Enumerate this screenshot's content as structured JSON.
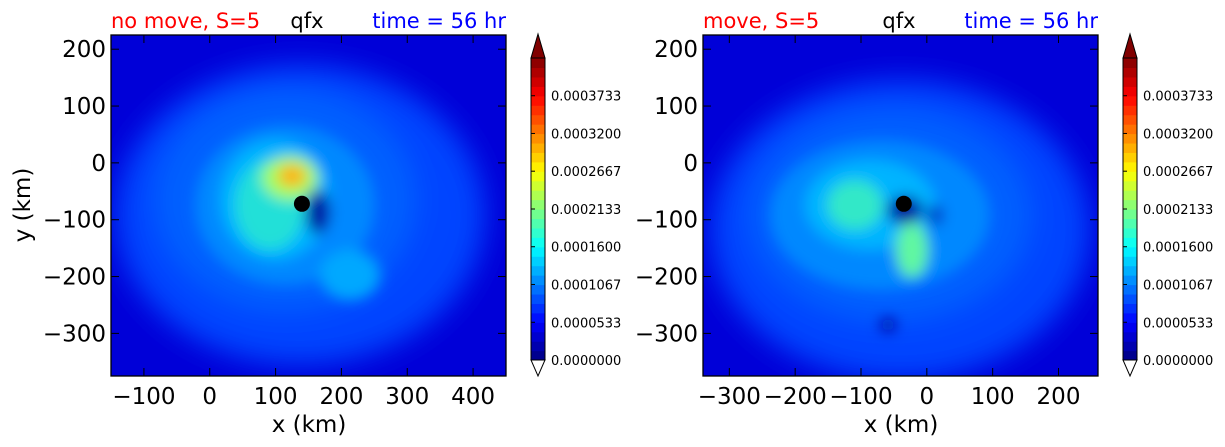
{
  "chart_data": [
    {
      "type": "contour",
      "title_left": "no move, S=5",
      "title_left_color": "#ff0000",
      "title_center": "qfx",
      "title_right": "time = 56 hr",
      "title_right_color": "#0000ff",
      "xlabel": "x (km)",
      "ylabel": "y (km)",
      "xlim": [
        -150,
        450
      ],
      "ylim": [
        -375,
        225
      ],
      "xticks": [
        -100,
        0,
        100,
        200,
        300,
        400
      ],
      "xtick_labels": [
        "−100",
        "0",
        "100",
        "200",
        "300",
        "400"
      ],
      "yticks": [
        200,
        100,
        0,
        -100,
        -200,
        -300
      ],
      "ytick_labels": [
        "200",
        "100",
        "0",
        "−100",
        "−200",
        "−300"
      ],
      "center_marker": {
        "x": 140,
        "y": -72
      },
      "field_max": [
        {
          "x": 120,
          "y": -30,
          "value": 0.00028
        },
        {
          "x": 230,
          "y": -200,
          "value": 0.00013
        }
      ],
      "colorbar": {
        "levels": [
          0.0,
          5.33e-05,
          0.0001067,
          0.00016,
          0.0002133,
          0.0002667,
          0.00032,
          0.0003733
        ],
        "labels": [
          "0.0000000",
          "0.0000533",
          "0.0001067",
          "0.0001600",
          "0.0002133",
          "0.0002667",
          "0.0003200",
          "0.0003733"
        ],
        "max": 0.0004266,
        "colormap": "jet",
        "extend": "both"
      }
    },
    {
      "type": "contour",
      "title_left": "move, S=5",
      "title_left_color": "#ff0000",
      "title_center": "qfx",
      "title_right": "time = 56 hr",
      "title_right_color": "#0000ff",
      "xlabel": "x (km)",
      "ylabel": "",
      "xlim": [
        -340,
        260
      ],
      "ylim": [
        -375,
        225
      ],
      "xticks": [
        -300,
        -200,
        -100,
        0,
        100,
        200
      ],
      "xtick_labels": [
        "−300",
        "−200",
        "−100",
        "0",
        "100",
        "200"
      ],
      "yticks": [
        200,
        100,
        0,
        -100,
        -200,
        -300
      ],
      "ytick_labels": [
        "200",
        "100",
        "0",
        "−100",
        "−200",
        "−300"
      ],
      "center_marker": {
        "x": -35,
        "y": -72
      },
      "field_max": [
        {
          "x": -80,
          "y": -60,
          "value": 0.00018
        },
        {
          "x": -5,
          "y": -160,
          "value": 0.0002
        }
      ],
      "colorbar": {
        "levels": [
          0.0,
          5.33e-05,
          0.0001067,
          0.00016,
          0.0002133,
          0.0002667,
          0.00032,
          0.0003733
        ],
        "labels": [
          "0.0000000",
          "0.0000533",
          "0.0001067",
          "0.0001600",
          "0.0002133",
          "0.0002667",
          "0.0003200",
          "0.0003733"
        ],
        "max": 0.0004266,
        "colormap": "jet",
        "extend": "both"
      }
    }
  ]
}
